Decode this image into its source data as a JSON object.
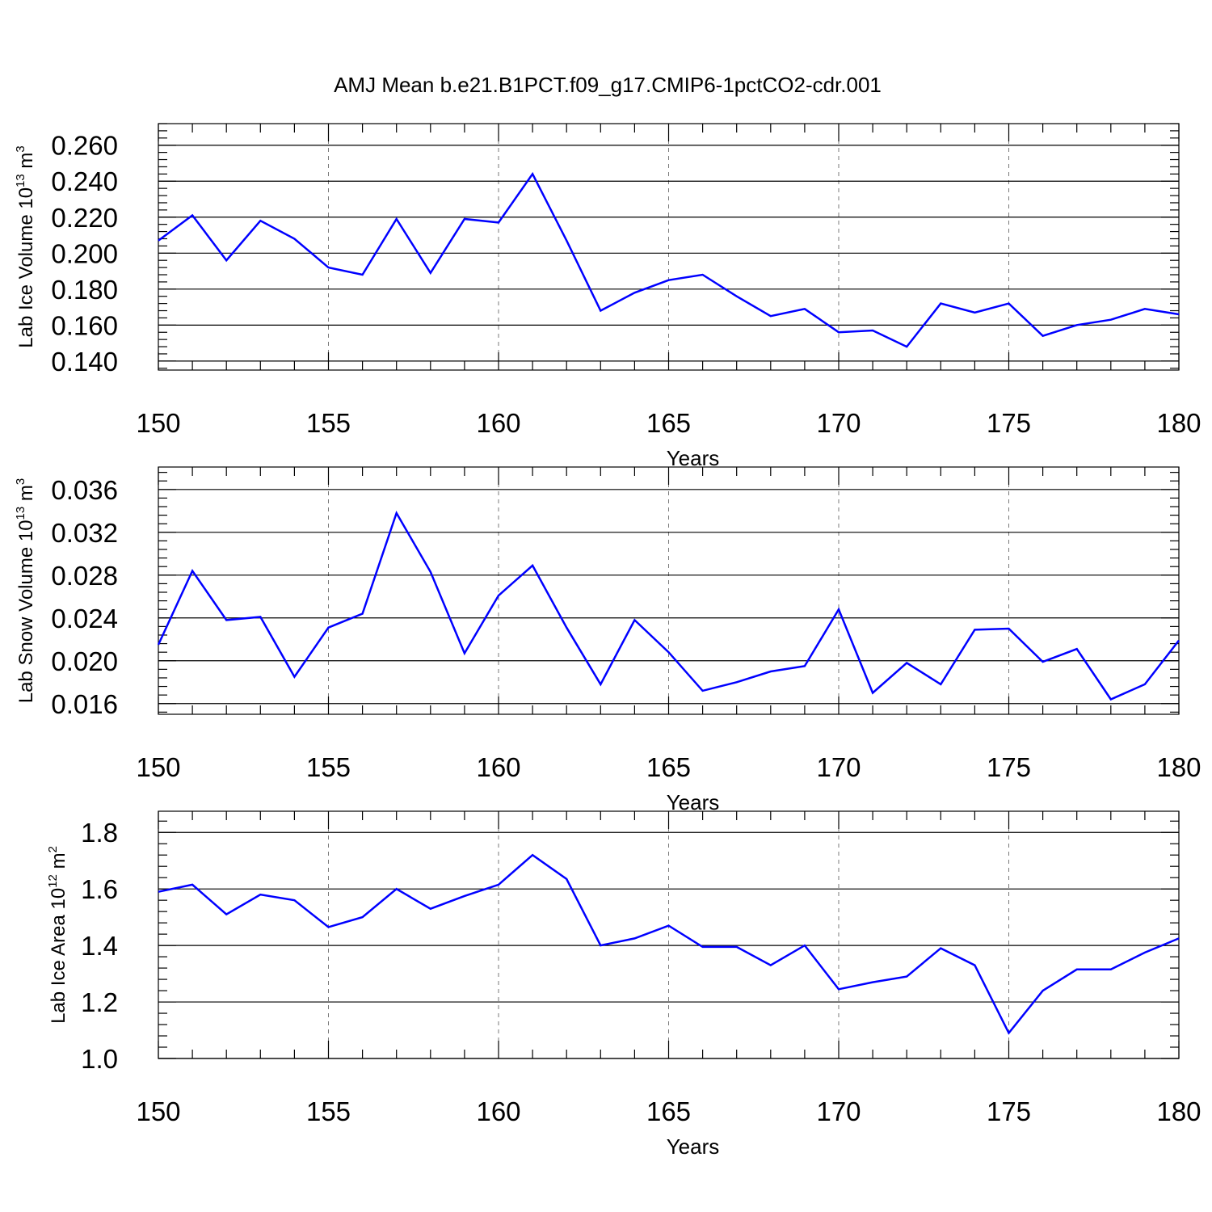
{
  "figure_title": "AMJ Mean b.e21.B1PCT.f09_g17.CMIP6-1pctCO2-cdr.001",
  "chart_data": [
    {
      "type": "line",
      "xlabel": "Years",
      "ylabel_main": "Lab Ice Volume 10",
      "ylabel_sup1": "13",
      "ylabel_mid": " m",
      "ylabel_sup2": "3",
      "xlim": [
        150,
        180
      ],
      "ylim": [
        0.135,
        0.272
      ],
      "xticks": [
        150,
        155,
        160,
        165,
        170,
        175,
        180
      ],
      "xtick_labels": [
        "150",
        "155",
        "160",
        "165",
        "170",
        "175",
        "180"
      ],
      "yticks": [
        0.14,
        0.16,
        0.18,
        0.2,
        0.22,
        0.24,
        0.26
      ],
      "ytick_labels": [
        "0.140",
        "0.160",
        "0.180",
        "0.200",
        "0.220",
        "0.240",
        "0.260"
      ],
      "line_color": "#0000ff",
      "x": [
        150,
        151,
        152,
        153,
        154,
        155,
        156,
        157,
        158,
        159,
        160,
        161,
        162,
        163,
        164,
        165,
        166,
        167,
        168,
        169,
        170,
        171,
        172,
        173,
        174,
        175,
        176,
        177,
        178,
        179,
        180
      ],
      "values": [
        0.207,
        0.221,
        0.196,
        0.218,
        0.208,
        0.192,
        0.188,
        0.219,
        0.189,
        0.219,
        0.217,
        0.244,
        0.207,
        0.168,
        0.178,
        0.185,
        0.188,
        0.176,
        0.165,
        0.169,
        0.156,
        0.157,
        0.148,
        0.172,
        0.167,
        0.172,
        0.154,
        0.16,
        0.163,
        0.169,
        0.166
      ]
    },
    {
      "type": "line",
      "xlabel": "Years",
      "ylabel_main": "Lab Snow Volume 10",
      "ylabel_sup1": "13",
      "ylabel_mid": " m",
      "ylabel_sup2": "3",
      "xlim": [
        150,
        180
      ],
      "ylim": [
        0.015,
        0.0381
      ],
      "xticks": [
        150,
        155,
        160,
        165,
        170,
        175,
        180
      ],
      "xtick_labels": [
        "150",
        "155",
        "160",
        "165",
        "170",
        "175",
        "180"
      ],
      "yticks": [
        0.016,
        0.02,
        0.024,
        0.028,
        0.032,
        0.036
      ],
      "ytick_labels": [
        "0.016",
        "0.020",
        "0.024",
        "0.028",
        "0.032",
        "0.036"
      ],
      "line_color": "#0000ff",
      "x": [
        150,
        151,
        152,
        153,
        154,
        155,
        156,
        157,
        158,
        159,
        160,
        161,
        162,
        163,
        164,
        165,
        166,
        167,
        168,
        169,
        170,
        171,
        172,
        173,
        174,
        175,
        176,
        177,
        178,
        179,
        180
      ],
      "values": [
        0.0215,
        0.0284,
        0.0238,
        0.0241,
        0.0185,
        0.0231,
        0.0244,
        0.0338,
        0.0283,
        0.0207,
        0.0261,
        0.0289,
        0.0231,
        0.0178,
        0.0238,
        0.0208,
        0.0172,
        0.018,
        0.019,
        0.0195,
        0.0248,
        0.017,
        0.0198,
        0.0178,
        0.0229,
        0.023,
        0.0199,
        0.0211,
        0.0164,
        0.0178,
        0.0219
      ]
    },
    {
      "type": "line",
      "xlabel": "Years",
      "ylabel_main": "Lab Ice Area 10",
      "ylabel_sup1": "12",
      "ylabel_mid": " m",
      "ylabel_sup2": "2",
      "xlim": [
        150,
        180
      ],
      "ylim": [
        1.0,
        1.875
      ],
      "xticks": [
        150,
        155,
        160,
        165,
        170,
        175,
        180
      ],
      "xtick_labels": [
        "150",
        "155",
        "160",
        "165",
        "170",
        "175",
        "180"
      ],
      "yticks": [
        1.0,
        1.2,
        1.4,
        1.6,
        1.8
      ],
      "ytick_labels": [
        "1.0",
        "1.2",
        "1.4",
        "1.6",
        "1.8"
      ],
      "line_color": "#0000ff",
      "x": [
        150,
        151,
        152,
        153,
        154,
        155,
        156,
        157,
        158,
        159,
        160,
        161,
        162,
        163,
        164,
        165,
        166,
        167,
        168,
        169,
        170,
        171,
        172,
        173,
        174,
        175,
        176,
        177,
        178,
        179,
        180
      ],
      "values": [
        1.59,
        1.615,
        1.51,
        1.58,
        1.56,
        1.465,
        1.5,
        1.6,
        1.53,
        1.575,
        1.615,
        1.72,
        1.635,
        1.4,
        1.425,
        1.47,
        1.395,
        1.395,
        1.33,
        1.4,
        1.245,
        1.27,
        1.29,
        1.39,
        1.33,
        1.09,
        1.24,
        1.315,
        1.315,
        1.375,
        1.425
      ]
    }
  ]
}
